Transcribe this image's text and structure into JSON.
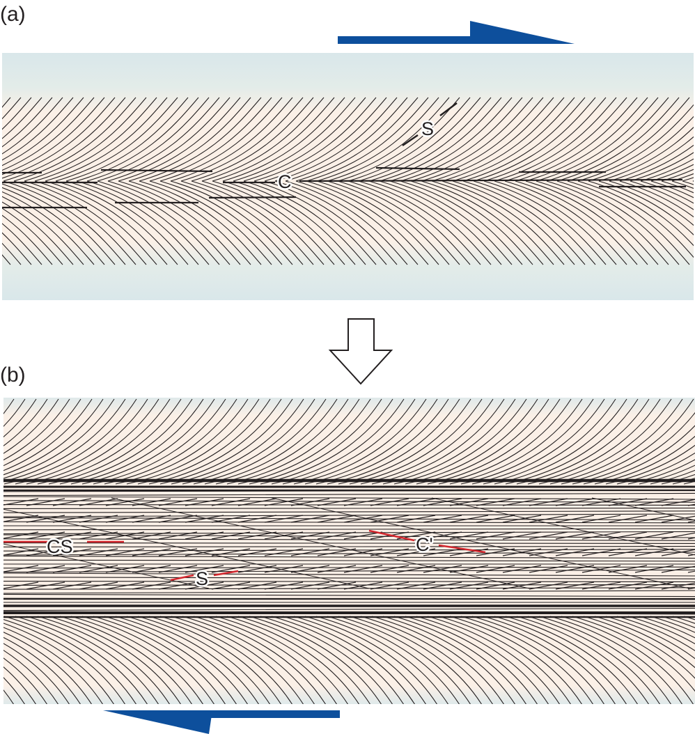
{
  "panel_a": {
    "label": "(a)",
    "fabric_labels": {
      "s": "S",
      "c": "C"
    }
  },
  "panel_b": {
    "label": "(b)",
    "fabric_labels": {
      "cs": "CS",
      "c_prime": "C'",
      "s": "S"
    }
  },
  "colors": {
    "shear_arrow": "#0d4f9c",
    "shear_zone_fill": "#fbf0e7",
    "wall_rock_fill": "#d9e7ea",
    "foliation_line": "#231f20",
    "highlight_line": "#d3262d",
    "transition_arrow_fill": "#ffffff"
  },
  "shear_sense": {
    "top": "dextral (top to the right)",
    "bottom": "bottom to the left"
  }
}
